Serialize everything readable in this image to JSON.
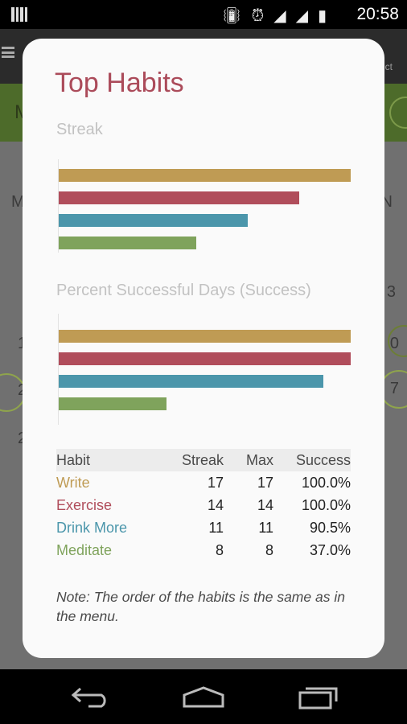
{
  "status_bar": {
    "time": "20:58",
    "icons": [
      "vibrate-icon",
      "alarm-icon",
      "wifi-icon",
      "signal-icon",
      "battery-charging-icon"
    ]
  },
  "background": {
    "left_letters": [
      "M",
      "M",
      "1",
      "2",
      "2"
    ],
    "right_letters": [
      "N",
      "3",
      "0",
      "7"
    ],
    "toolbar_fragment": "ct"
  },
  "dialog": {
    "title": "Top Habits",
    "streak_section": "Streak",
    "success_section": "Percent Successful Days (Success)",
    "note": "Note: The order of the habits is the same as in the menu."
  },
  "table": {
    "headers": {
      "habit": "Habit",
      "streak": "Streak",
      "max": "Max",
      "success": "Success"
    },
    "rows": [
      {
        "habit": "Write",
        "streak": "17",
        "max": "17",
        "success": "100.0%"
      },
      {
        "habit": "Exercise",
        "streak": "14",
        "max": "14",
        "success": "100.0%"
      },
      {
        "habit": "Drink More",
        "streak": "11",
        "max": "11",
        "success": "90.5%"
      },
      {
        "habit": "Meditate",
        "streak": "8",
        "max": "8",
        "success": "37.0%"
      }
    ]
  },
  "colors": {
    "Write": "#bf9b54",
    "Exercise": "#b04d5b",
    "Drink More": "#4b96ab",
    "Meditate": "#7fa35c",
    "title": "#ab4b5a"
  },
  "chart_data": [
    {
      "type": "bar",
      "orientation": "horizontal",
      "title": "Streak",
      "categories": [
        "Write",
        "Exercise",
        "Drink More",
        "Meditate"
      ],
      "values": [
        17,
        14,
        11,
        8
      ],
      "xlim": [
        0,
        17
      ]
    },
    {
      "type": "bar",
      "orientation": "horizontal",
      "title": "Percent Successful Days (Success)",
      "categories": [
        "Write",
        "Exercise",
        "Drink More",
        "Meditate"
      ],
      "values": [
        100.0,
        100.0,
        90.5,
        37.0
      ],
      "xlim": [
        0,
        100
      ]
    }
  ]
}
